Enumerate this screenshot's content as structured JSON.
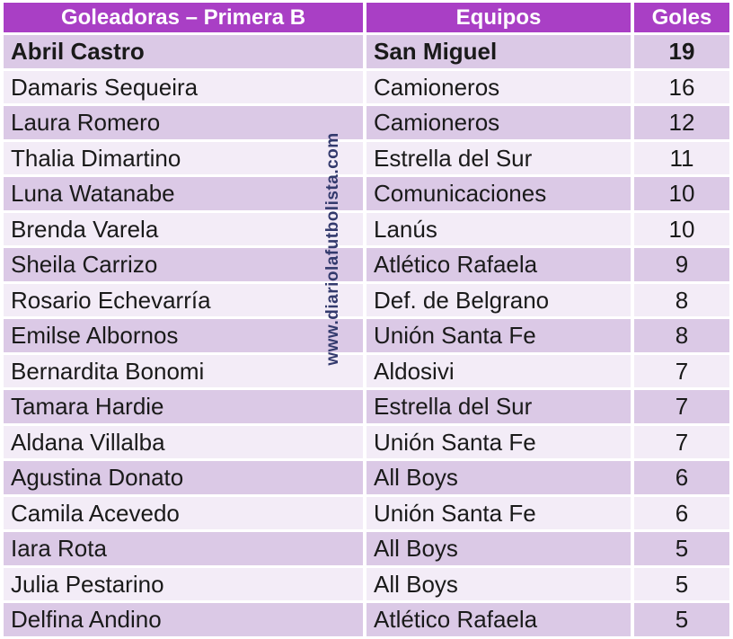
{
  "chart_data": {
    "type": "table",
    "title": "Goleadoras – Primera B",
    "columns": [
      "Goleadoras – Primera B",
      "Equipos",
      "Goles"
    ],
    "rows": [
      {
        "player": "Abril Castro",
        "team": "San Miguel",
        "goals": 19,
        "bold": true
      },
      {
        "player": "Damaris Sequeira",
        "team": "Camioneros",
        "goals": 16,
        "bold": false
      },
      {
        "player": "Laura Romero",
        "team": "Camioneros",
        "goals": 12,
        "bold": false
      },
      {
        "player": "Thalia Dimartino",
        "team": "Estrella del Sur",
        "goals": 11,
        "bold": false
      },
      {
        "player": "Luna Watanabe",
        "team": "Comunicaciones",
        "goals": 10,
        "bold": false
      },
      {
        "player": "Brenda Varela",
        "team": "Lanús",
        "goals": 10,
        "bold": false
      },
      {
        "player": "Sheila Carrizo",
        "team": "Atlético Rafaela",
        "goals": 9,
        "bold": false
      },
      {
        "player": "Rosario Echevarría",
        "team": "Def. de Belgrano",
        "goals": 8,
        "bold": false
      },
      {
        "player": "Emilse Albornos",
        "team": "Unión Santa Fe",
        "goals": 8,
        "bold": false
      },
      {
        "player": "Bernardita Bonomi",
        "team": "Aldosivi",
        "goals": 7,
        "bold": false
      },
      {
        "player": "Tamara Hardie",
        "team": "Estrella del Sur",
        "goals": 7,
        "bold": false
      },
      {
        "player": "Aldana Villalba",
        "team": "Unión Santa Fe",
        "goals": 7,
        "bold": false
      },
      {
        "player": "Agustina Donato",
        "team": "All Boys",
        "goals": 6,
        "bold": false
      },
      {
        "player": "Camila Acevedo",
        "team": "Unión Santa Fe",
        "goals": 6,
        "bold": false
      },
      {
        "player": "Iara Rota",
        "team": "All Boys",
        "goals": 5,
        "bold": false
      },
      {
        "player": "Julia Pestarino",
        "team": "All Boys",
        "goals": 5,
        "bold": false
      },
      {
        "player": "Delfina Andino",
        "team": "Atlético Rafaela",
        "goals": 5,
        "bold": false
      }
    ]
  },
  "watermark": {
    "text": "www.diariolafutbolista.com"
  },
  "colors": {
    "header_bg": "#a93fc5",
    "header_text": "#ffffff",
    "row_odd": "#dbc9e6",
    "row_even": "#f3ecf7",
    "body_text": "#1a1a1a",
    "watermark": "#333a6d",
    "background": "#ffffff"
  }
}
